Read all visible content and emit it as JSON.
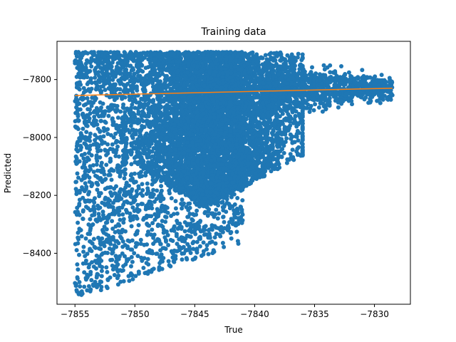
{
  "chart_data": {
    "type": "scatter",
    "title": "Training data",
    "xlabel": "True",
    "ylabel": "Predicted",
    "xlim": [
      -7856.5,
      -7827.0
    ],
    "ylim": [
      -8576,
      -7668
    ],
    "x_ticks": [
      -7855,
      -7850,
      -7845,
      -7840,
      -7835,
      -7830
    ],
    "y_ticks": [
      -8400,
      -8200,
      -8000,
      -7800
    ],
    "tick_labels_x": [
      "−7855",
      "−7850",
      "−7845",
      "−7840",
      "−7835",
      "−7830"
    ],
    "tick_labels_y": [
      "−8400",
      "−8200",
      "−8000",
      "−7800"
    ],
    "grid": false,
    "series": [
      {
        "kind": "scatter",
        "color": "#1f77b4",
        "point_count": 9000,
        "distribution": {
          "x_range": [
            -7855,
            -7828.5
          ],
          "dense_core": {
            "x_center": -7843,
            "x_spread": 3.2,
            "y_top": -7705,
            "y_bottom": -8240
          },
          "sparse_left": {
            "x_range": [
              -7855,
              -7845
            ],
            "y_range": [
              -7705,
              -8560
            ]
          },
          "right_tail": {
            "x_range": [
              -7839,
              -7828.5
            ],
            "y_range": [
              -7730,
              -7970
            ]
          }
        }
      },
      {
        "kind": "line",
        "color": "#ff7f0e",
        "x": [
          -7855,
          -7828.5
        ],
        "y": [
          -7855,
          -7830
        ]
      }
    ]
  }
}
